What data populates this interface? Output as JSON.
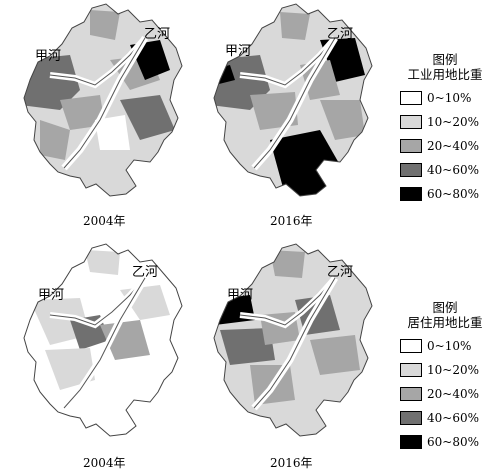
{
  "maps": [
    {
      "year_label": "2004年",
      "river_a": "甲河",
      "river_b": "乙河"
    },
    {
      "year_label": "2016年",
      "river_a": "甲河",
      "river_b": "乙河"
    },
    {
      "year_label": "2004年",
      "river_a": "甲河",
      "river_b": "乙河"
    },
    {
      "year_label": "2016年",
      "river_a": "甲河",
      "river_b": "乙河"
    }
  ],
  "legends": [
    {
      "title": "图例",
      "subtitle": "工业用地比重",
      "items": [
        {
          "label": "0~10%",
          "color": "#ffffff"
        },
        {
          "label": "10~20%",
          "color": "#d9d9d9"
        },
        {
          "label": "20~40%",
          "color": "#a6a6a6"
        },
        {
          "label": "40~60%",
          "color": "#707070"
        },
        {
          "label": "60~80%",
          "color": "#000000"
        }
      ]
    },
    {
      "title": "图例",
      "subtitle": "居住用地比重",
      "items": [
        {
          "label": "0~10%",
          "color": "#ffffff"
        },
        {
          "label": "10~20%",
          "color": "#d9d9d9"
        },
        {
          "label": "20~40%",
          "color": "#a6a6a6"
        },
        {
          "label": "40~60%",
          "color": "#707070"
        },
        {
          "label": "60~80%",
          "color": "#000000"
        }
      ]
    }
  ]
}
